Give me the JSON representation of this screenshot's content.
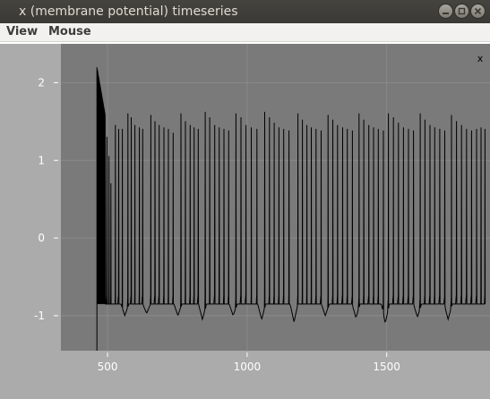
{
  "window": {
    "title": "x (membrane potential) timeseries",
    "buttons": [
      "minimize",
      "maximize",
      "close"
    ]
  },
  "menubar": {
    "items": [
      "View",
      "Mouse"
    ]
  },
  "plot": {
    "close_glyph": "x",
    "colors": {
      "outer_background": "#ababab",
      "plot_background": "#7a7a7a",
      "trace": "#000000",
      "grid": "#8a8a8a",
      "tick_text": "#ffffff"
    }
  },
  "chart_data": {
    "type": "line",
    "title": "",
    "xlabel": "",
    "ylabel": "",
    "xlim": [
      333,
      1870
    ],
    "ylim": [
      -1.45,
      2.5
    ],
    "x_ticks": [
      500,
      1000,
      1500
    ],
    "x_tick_labels": [
      "500",
      "1000",
      "1500"
    ],
    "y_ticks": [
      2,
      1,
      0,
      -1
    ],
    "y_tick_labels": [
      "2",
      "1",
      "0",
      "-1"
    ],
    "grid": true,
    "series": [
      {
        "description_free": true,
        "burst_start_x": 462,
        "burst_start_peak_y": 2.2,
        "burst_dense_end_x": 490,
        "baseline_y": -0.85,
        "trough_y": -1.1,
        "spike_peaks": [
          {
            "x": 462,
            "y": 2.2
          },
          {
            "x": 468,
            "y": 2.0
          },
          {
            "x": 475,
            "y": 1.8
          },
          {
            "x": 482,
            "y": 1.6
          },
          {
            "x": 490,
            "y": 1.45
          },
          {
            "x": 498,
            "y": 1.3
          },
          {
            "x": 505,
            "y": 1.05
          },
          {
            "x": 512,
            "y": 0.7
          },
          {
            "x": 528,
            "y": 1.45
          },
          {
            "x": 540,
            "y": 1.4
          },
          {
            "x": 553,
            "y": 1.4
          },
          {
            "x": 573,
            "y": 1.6
          },
          {
            "x": 585,
            "y": 1.55
          },
          {
            "x": 598,
            "y": 1.45
          },
          {
            "x": 614,
            "y": 1.42
          },
          {
            "x": 626,
            "y": 1.4
          },
          {
            "x": 655,
            "y": 1.58
          },
          {
            "x": 670,
            "y": 1.5
          },
          {
            "x": 685,
            "y": 1.45
          },
          {
            "x": 702,
            "y": 1.42
          },
          {
            "x": 718,
            "y": 1.4
          },
          {
            "x": 735,
            "y": 1.35
          },
          {
            "x": 763,
            "y": 1.6
          },
          {
            "x": 779,
            "y": 1.5
          },
          {
            "x": 796,
            "y": 1.45
          },
          {
            "x": 810,
            "y": 1.42
          },
          {
            "x": 825,
            "y": 1.4
          },
          {
            "x": 850,
            "y": 1.62
          },
          {
            "x": 866,
            "y": 1.55
          },
          {
            "x": 884,
            "y": 1.45
          },
          {
            "x": 900,
            "y": 1.42
          },
          {
            "x": 917,
            "y": 1.4
          },
          {
            "x": 934,
            "y": 1.38
          },
          {
            "x": 960,
            "y": 1.6
          },
          {
            "x": 978,
            "y": 1.55
          },
          {
            "x": 996,
            "y": 1.45
          },
          {
            "x": 1015,
            "y": 1.42
          },
          {
            "x": 1035,
            "y": 1.4
          },
          {
            "x": 1063,
            "y": 1.62
          },
          {
            "x": 1080,
            "y": 1.55
          },
          {
            "x": 1097,
            "y": 1.48
          },
          {
            "x": 1114,
            "y": 1.42
          },
          {
            "x": 1131,
            "y": 1.4
          },
          {
            "x": 1150,
            "y": 1.38
          },
          {
            "x": 1182,
            "y": 1.6
          },
          {
            "x": 1198,
            "y": 1.52
          },
          {
            "x": 1214,
            "y": 1.45
          },
          {
            "x": 1230,
            "y": 1.42
          },
          {
            "x": 1247,
            "y": 1.4
          },
          {
            "x": 1265,
            "y": 1.38
          },
          {
            "x": 1290,
            "y": 1.58
          },
          {
            "x": 1307,
            "y": 1.52
          },
          {
            "x": 1324,
            "y": 1.45
          },
          {
            "x": 1342,
            "y": 1.42
          },
          {
            "x": 1359,
            "y": 1.4
          },
          {
            "x": 1377,
            "y": 1.38
          },
          {
            "x": 1401,
            "y": 1.6
          },
          {
            "x": 1418,
            "y": 1.52
          },
          {
            "x": 1436,
            "y": 1.45
          },
          {
            "x": 1453,
            "y": 1.42
          },
          {
            "x": 1470,
            "y": 1.4
          },
          {
            "x": 1488,
            "y": 1.38
          },
          {
            "x": 1506,
            "y": 1.6
          },
          {
            "x": 1524,
            "y": 1.55
          },
          {
            "x": 1542,
            "y": 1.48
          },
          {
            "x": 1560,
            "y": 1.42
          },
          {
            "x": 1578,
            "y": 1.4
          },
          {
            "x": 1596,
            "y": 1.38
          },
          {
            "x": 1620,
            "y": 1.6
          },
          {
            "x": 1637,
            "y": 1.52
          },
          {
            "x": 1655,
            "y": 1.45
          },
          {
            "x": 1672,
            "y": 1.42
          },
          {
            "x": 1690,
            "y": 1.4
          },
          {
            "x": 1708,
            "y": 1.38
          },
          {
            "x": 1732,
            "y": 1.58
          },
          {
            "x": 1750,
            "y": 1.5
          },
          {
            "x": 1768,
            "y": 1.45
          },
          {
            "x": 1786,
            "y": 1.4
          },
          {
            "x": 1804,
            "y": 1.38
          },
          {
            "x": 1822,
            "y": 1.4
          },
          {
            "x": 1838,
            "y": 1.42
          },
          {
            "x": 1852,
            "y": 1.4
          }
        ],
        "troughs": [
          {
            "x": 562,
            "y": -1.0
          },
          {
            "x": 640,
            "y": -0.97
          },
          {
            "x": 752,
            "y": -1.0
          },
          {
            "x": 840,
            "y": -1.05
          },
          {
            "x": 950,
            "y": -1.0
          },
          {
            "x": 1052,
            "y": -1.05
          },
          {
            "x": 1168,
            "y": -1.08
          },
          {
            "x": 1280,
            "y": -1.0
          },
          {
            "x": 1390,
            "y": -1.03
          },
          {
            "x": 1495,
            "y": -1.1
          },
          {
            "x": 1610,
            "y": -1.02
          },
          {
            "x": 1720,
            "y": -1.05
          }
        ]
      }
    ]
  }
}
